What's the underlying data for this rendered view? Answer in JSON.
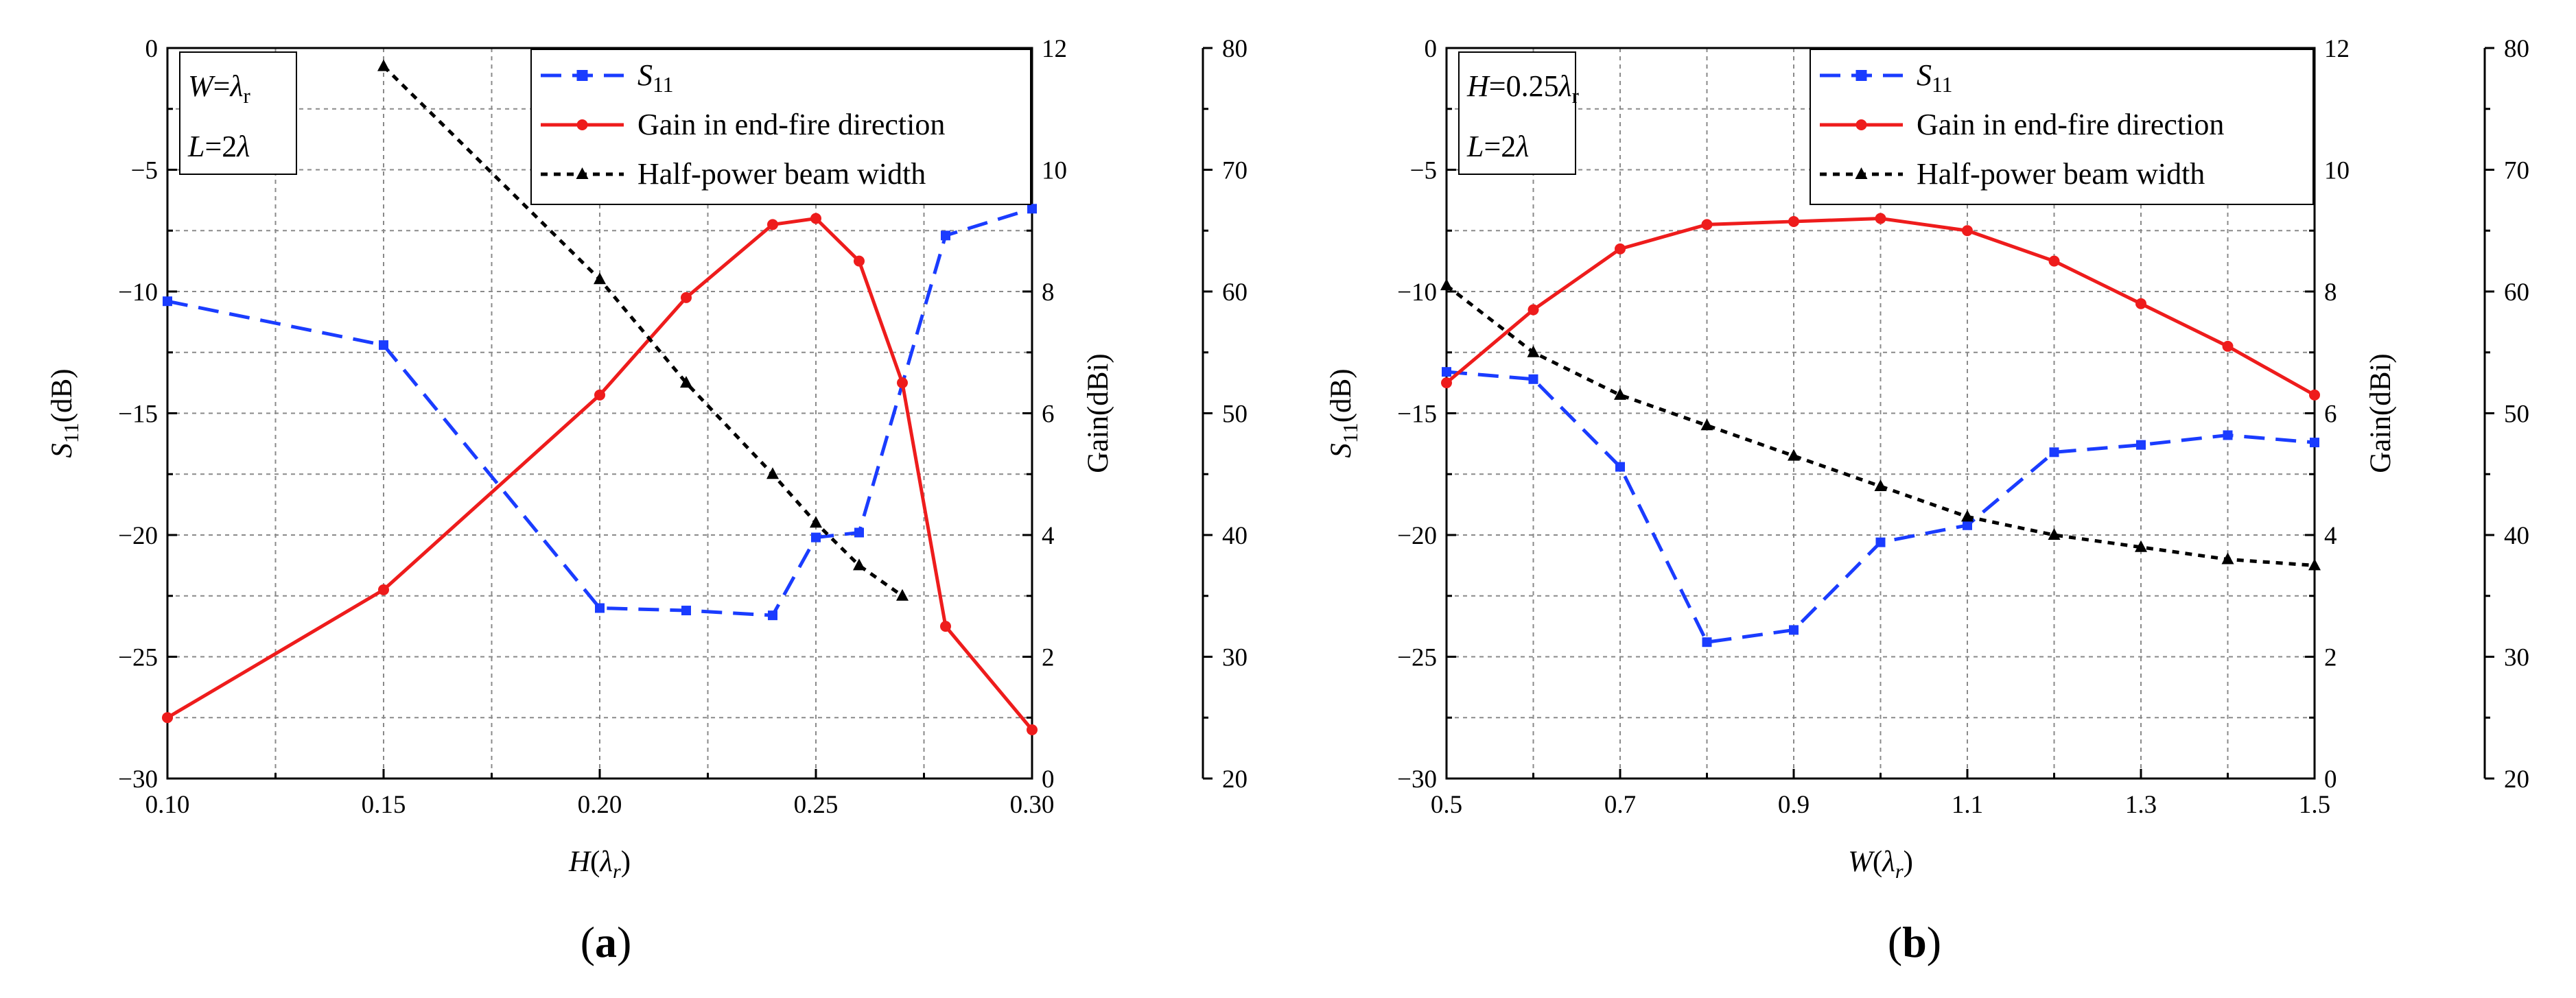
{
  "chart_data": [
    {
      "panel": "(a)",
      "panel_letter": "a",
      "type": "line",
      "x_variable": "H",
      "xlabel": "H(λr)",
      "xlim": [
        0.1,
        0.3
      ],
      "xticks": [
        0.1,
        0.15,
        0.2,
        0.25,
        0.3
      ],
      "xtick_labels": [
        "0.10",
        "0.15",
        "0.20",
        "0.25",
        "0.30"
      ],
      "ylabel_left": "S11(dB)",
      "ylim_left": [
        -30,
        0
      ],
      "yticks_left": [
        0,
        -5,
        -10,
        -15,
        -20,
        -25,
        -30
      ],
      "ylabel_gain": "Gain(dBi)",
      "ylim_gain": [
        0,
        12
      ],
      "yticks_gain": [
        0,
        2,
        4,
        6,
        8,
        10,
        12
      ],
      "ylim_beam": [
        20,
        80
      ],
      "yticks_beam": [
        20,
        30,
        40,
        50,
        60,
        70,
        80
      ],
      "params": [
        "W=λr",
        "L=2λ"
      ],
      "legend": [
        "S11",
        "Gain in end-fire direction",
        "Half-power beam width"
      ],
      "series": [
        {
          "name": "S11",
          "axis": "left",
          "color": "#1a3cff",
          "style": "dashed",
          "marker": "square",
          "x": [
            0.1,
            0.15,
            0.2,
            0.22,
            0.24,
            0.25,
            0.26,
            0.28,
            0.3
          ],
          "y": [
            -10.4,
            -12.2,
            -23.0,
            -23.1,
            -23.3,
            -20.1,
            -19.9,
            -7.7,
            -6.6
          ]
        },
        {
          "name": "Gain in end-fire direction",
          "axis": "gain",
          "color": "#ee1c1c",
          "style": "solid",
          "marker": "circle",
          "x": [
            0.1,
            0.15,
            0.2,
            0.22,
            0.24,
            0.25,
            0.26,
            0.27,
            0.28,
            0.3
          ],
          "y": [
            1.0,
            3.1,
            6.3,
            7.9,
            9.1,
            9.2,
            8.5,
            6.5,
            2.5,
            0.8
          ]
        },
        {
          "name": "Half-power beam width",
          "axis": "beam",
          "color": "#000000",
          "style": "dotted",
          "marker": "triangle",
          "x": [
            0.15,
            0.2,
            0.22,
            0.24,
            0.25,
            0.26,
            0.27
          ],
          "y": [
            78.5,
            61.0,
            52.5,
            45.0,
            41.0,
            37.5,
            35.0
          ]
        }
      ]
    },
    {
      "panel": "(b)",
      "panel_letter": "b",
      "type": "line",
      "x_variable": "W",
      "xlabel": "W(λr)",
      "xlim": [
        0.5,
        1.5
      ],
      "xticks": [
        0.5,
        0.7,
        0.9,
        1.1,
        1.3,
        1.5
      ],
      "xtick_labels": [
        "0.5",
        "0.7",
        "0.9",
        "1.1",
        "1.3",
        "1.5"
      ],
      "ylabel_left": "S11(dB)",
      "ylim_left": [
        -30,
        0
      ],
      "yticks_left": [
        0,
        -5,
        -10,
        -15,
        -20,
        -25,
        -30
      ],
      "ylabel_gain": "Gain(dBi)",
      "ylim_gain": [
        0,
        12
      ],
      "yticks_gain": [
        0,
        2,
        4,
        6,
        8,
        10,
        12
      ],
      "ylim_beam": [
        20,
        80
      ],
      "yticks_beam": [
        20,
        30,
        40,
        50,
        60,
        70,
        80
      ],
      "params": [
        "H=0.25λr",
        "L=2λ"
      ],
      "legend": [
        "S11",
        "Gain in end-fire direction",
        "Half-power beam width"
      ],
      "series": [
        {
          "name": "S11",
          "axis": "left",
          "color": "#1a3cff",
          "style": "dashed",
          "marker": "square",
          "x": [
            0.5,
            0.6,
            0.7,
            0.8,
            0.9,
            1.0,
            1.1,
            1.2,
            1.3,
            1.4,
            1.5
          ],
          "y": [
            -13.3,
            -13.6,
            -17.2,
            -24.4,
            -23.9,
            -20.3,
            -19.6,
            -16.6,
            -16.3,
            -15.9,
            -16.2
          ]
        },
        {
          "name": "Gain in end-fire direction",
          "axis": "gain",
          "color": "#ee1c1c",
          "style": "solid",
          "marker": "circle",
          "x": [
            0.5,
            0.6,
            0.7,
            0.8,
            0.9,
            1.0,
            1.1,
            1.2,
            1.3,
            1.4,
            1.5
          ],
          "y": [
            6.5,
            7.7,
            8.7,
            9.1,
            9.15,
            9.2,
            9.0,
            8.5,
            7.8,
            7.1,
            6.3
          ]
        },
        {
          "name": "Half-power beam width",
          "axis": "beam",
          "color": "#000000",
          "style": "dotted",
          "marker": "triangle",
          "x": [
            0.5,
            0.6,
            0.7,
            0.8,
            0.9,
            1.0,
            1.1,
            1.2,
            1.3,
            1.4,
            1.5
          ],
          "y": [
            60.5,
            55.0,
            51.5,
            49.0,
            46.5,
            44.0,
            41.5,
            40.0,
            39.0,
            38.0,
            37.5
          ]
        }
      ]
    }
  ]
}
